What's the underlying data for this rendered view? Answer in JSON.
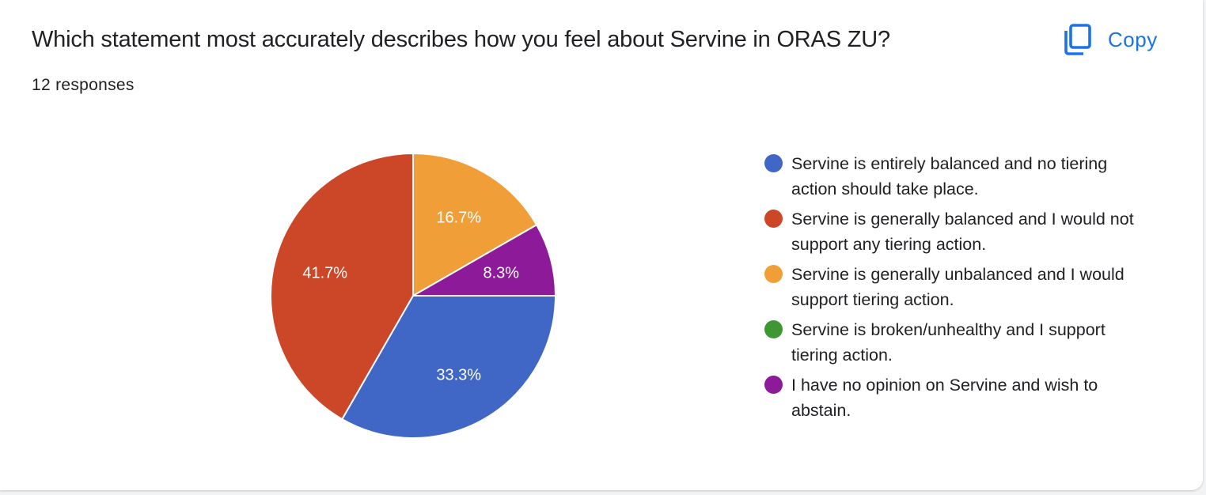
{
  "question": {
    "title": "Which statement most accurately describes how you feel about Servine in ORAS ZU?",
    "responses": "12 responses"
  },
  "copy_button": {
    "label": "Copy",
    "icon": "copy-icon",
    "color": "#1a73e8"
  },
  "chart_data": {
    "type": "pie",
    "legend_position": "right",
    "slices": [
      {
        "label": "Servine is entirely balanced and no tiering action should take place.",
        "value": 33.3,
        "display": "33.3%",
        "color": "#4066c6"
      },
      {
        "label": "Servine is generally balanced and I would not support any tiering action.",
        "value": 41.7,
        "display": "41.7%",
        "color": "#cc4727"
      },
      {
        "label": "Servine is generally unbalanced and I would support tiering action.",
        "value": 16.7,
        "display": "16.7%",
        "color": "#f09f38"
      },
      {
        "label": "Servine is broken/unhealthy and I support tiering action.",
        "value": 0,
        "display": "",
        "color": "#3f9734"
      },
      {
        "label": "I have no opinion on Servine and wish to abstain.",
        "value": 8.3,
        "display": "8.3%",
        "color": "#8d1a98"
      }
    ]
  }
}
